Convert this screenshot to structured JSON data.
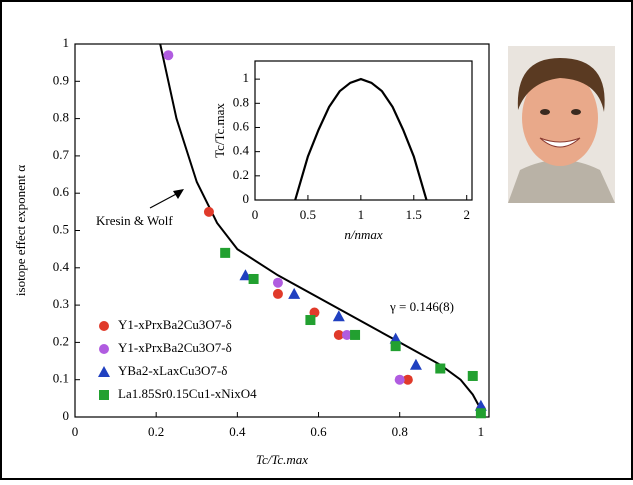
{
  "chart_data": [
    {
      "type": "scatter",
      "x_label": "Tc/Tc.max",
      "y_label": "isotope effect exponent α",
      "xlim": [
        0,
        1.02
      ],
      "ylim": [
        0,
        1
      ],
      "xticks": [
        0,
        0.2,
        0.4,
        0.6,
        0.8,
        1
      ],
      "yticks": [
        0,
        0.1,
        0.2,
        0.3,
        0.4,
        0.5,
        0.6,
        0.7,
        0.8,
        0.9,
        1
      ],
      "legend": "lower left",
      "curve": {
        "name": "Kresin & Wolf",
        "color": "#000000",
        "x": [
          0.21,
          0.25,
          0.3,
          0.35,
          0.4,
          0.5,
          0.6,
          0.7,
          0.8,
          0.9,
          0.95,
          0.98,
          1
        ],
        "y": [
          1,
          0.8,
          0.63,
          0.52,
          0.45,
          0.38,
          0.32,
          0.26,
          0.2,
          0.14,
          0.1,
          0.06,
          0.02
        ]
      },
      "annotation": "γ = 0.146(8)",
      "series": [
        {
          "name": "Y1-xPrxBa2Cu3O7-δ",
          "color": "#e03a2a",
          "marker": "circle",
          "x": [
            0.33,
            0.5,
            0.59,
            0.65,
            0.82,
            1.0
          ],
          "values": [
            0.55,
            0.33,
            0.28,
            0.22,
            0.1,
            0.02
          ]
        },
        {
          "name": "Y1-xPrxBa2Cu3O7-δ",
          "color": "#b05ce0",
          "marker": "circle",
          "x": [
            0.23,
            0.5,
            0.67,
            0.8,
            1.0
          ],
          "values": [
            0.97,
            0.36,
            0.22,
            0.1,
            0.02
          ]
        },
        {
          "name": "YBa2-xLaxCu3O7-δ",
          "color": "#2040c0",
          "marker": "triangle",
          "x": [
            0.42,
            0.54,
            0.65,
            0.79,
            0.84,
            1.0
          ],
          "values": [
            0.38,
            0.33,
            0.27,
            0.21,
            0.14,
            0.03
          ]
        },
        {
          "name": "La1.85Sr0.15Cu1-xNixO4",
          "color": "#22a030",
          "marker": "square",
          "x": [
            0.37,
            0.44,
            0.58,
            0.69,
            0.79,
            0.9,
            0.98,
            1.0
          ],
          "values": [
            0.44,
            0.37,
            0.26,
            0.22,
            0.19,
            0.13,
            0.11,
            0.01
          ]
        }
      ]
    },
    {
      "type": "line",
      "x_label": "n/nmax",
      "y_label": "Tc/Tc.max",
      "xlim": [
        0,
        2.05
      ],
      "ylim": [
        0,
        1.15
      ],
      "xticks": [
        0,
        0.5,
        1,
        1.5,
        2
      ],
      "yticks": [
        0,
        0.2,
        0.4,
        0.6,
        0.8,
        1
      ],
      "series": [
        {
          "color": "#000000",
          "x": [
            0.38,
            0.5,
            0.6,
            0.7,
            0.8,
            0.9,
            1,
            1.1,
            1.2,
            1.3,
            1.4,
            1.5,
            1.62
          ],
          "values": [
            0,
            0.36,
            0.58,
            0.77,
            0.9,
            0.97,
            1,
            0.97,
            0.9,
            0.77,
            0.58,
            0.36,
            0
          ]
        }
      ]
    }
  ]
}
